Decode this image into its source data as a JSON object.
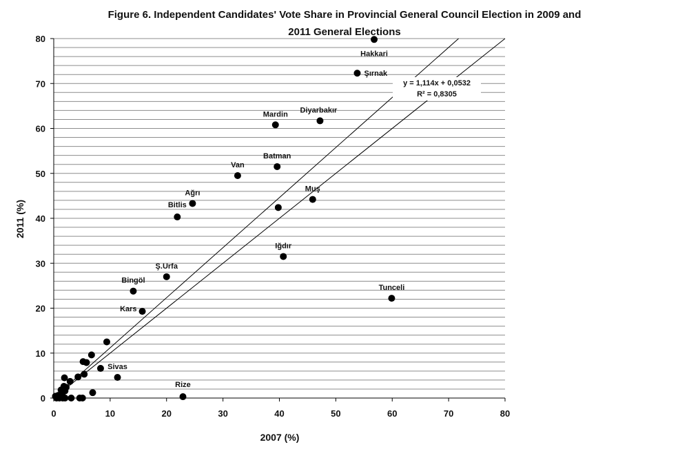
{
  "chart_data": {
    "type": "scatter",
    "title_line1": "Figure 6. Independent Candidates' Vote Share in Provincial General Council Election in 2009 and",
    "title_line2": "2011 General Elections",
    "xlabel": "2007 (%)",
    "ylabel": "2011 (%)",
    "xlim": [
      0,
      80
    ],
    "ylim": [
      0,
      80
    ],
    "x_ticks": [
      0,
      10,
      20,
      30,
      40,
      50,
      60,
      70,
      80
    ],
    "y_ticks": [
      0,
      10,
      20,
      30,
      40,
      50,
      60,
      70,
      80
    ],
    "x_tick_labels": [
      "0",
      "10",
      "20",
      "30",
      "40",
      "50",
      "60",
      "70",
      "80"
    ],
    "y_tick_labels": [
      "0",
      "10",
      "20",
      "30",
      "40",
      "50",
      "60",
      "70",
      "80"
    ],
    "grid": "horizontal gridlines every 2 units",
    "trendline": {
      "slope": 1.114,
      "intercept": 0.0532
    },
    "trendline_equation": "y = 1,114x + 0,0532",
    "trendline_r2": "R² = 0,8305",
    "reference_line": {
      "slope": 1,
      "intercept": 0
    },
    "points": [
      {
        "x": 56.8,
        "y": 79.8,
        "label": "Hakkari"
      },
      {
        "x": 53.8,
        "y": 72.3,
        "label": "Şırnak"
      },
      {
        "x": 47.2,
        "y": 61.7,
        "label": "Diyarbakır"
      },
      {
        "x": 39.3,
        "y": 60.8,
        "label": "Mardin"
      },
      {
        "x": 39.6,
        "y": 51.5,
        "label": "Batman"
      },
      {
        "x": 32.6,
        "y": 49.5,
        "label": "Van"
      },
      {
        "x": 24.6,
        "y": 43.3,
        "label": "Ağrı"
      },
      {
        "x": 21.9,
        "y": 40.3,
        "label": "Bitlis"
      },
      {
        "x": 45.9,
        "y": 44.2,
        "label": "Muş"
      },
      {
        "x": 39.8,
        "y": 42.4,
        "label": ""
      },
      {
        "x": 40.7,
        "y": 31.5,
        "label": "Iğdır"
      },
      {
        "x": 20.0,
        "y": 27.0,
        "label": "Ş.Urfa"
      },
      {
        "x": 14.1,
        "y": 23.8,
        "label": "Bingöl"
      },
      {
        "x": 15.7,
        "y": 19.3,
        "label": "Kars"
      },
      {
        "x": 59.9,
        "y": 22.2,
        "label": "Tunceli"
      },
      {
        "x": 9.4,
        "y": 12.5,
        "label": ""
      },
      {
        "x": 6.7,
        "y": 9.6,
        "label": ""
      },
      {
        "x": 5.2,
        "y": 8.1,
        "label": ""
      },
      {
        "x": 5.8,
        "y": 7.9,
        "label": ""
      },
      {
        "x": 8.3,
        "y": 6.6,
        "label": ""
      },
      {
        "x": 5.4,
        "y": 5.3,
        "label": ""
      },
      {
        "x": 4.3,
        "y": 4.7,
        "label": ""
      },
      {
        "x": 11.3,
        "y": 4.6,
        "label": "Sivas"
      },
      {
        "x": 1.9,
        "y": 4.5,
        "label": ""
      },
      {
        "x": 2.9,
        "y": 3.7,
        "label": ""
      },
      {
        "x": 1.8,
        "y": 2.6,
        "label": ""
      },
      {
        "x": 2.2,
        "y": 2.4,
        "label": ""
      },
      {
        "x": 1.3,
        "y": 1.8,
        "label": ""
      },
      {
        "x": 2.0,
        "y": 1.6,
        "label": ""
      },
      {
        "x": 6.9,
        "y": 1.2,
        "label": ""
      },
      {
        "x": 1.5,
        "y": 0.9,
        "label": ""
      },
      {
        "x": 0.8,
        "y": 0.6,
        "label": ""
      },
      {
        "x": 22.9,
        "y": 0.3,
        "label": "Rize"
      },
      {
        "x": 0.3,
        "y": 0.4,
        "label": ""
      },
      {
        "x": 0.5,
        "y": 0.0,
        "label": ""
      },
      {
        "x": 1.0,
        "y": 0.0,
        "label": ""
      },
      {
        "x": 1.6,
        "y": 0.0,
        "label": ""
      },
      {
        "x": 2.0,
        "y": 0.0,
        "label": ""
      },
      {
        "x": 3.1,
        "y": 0.0,
        "label": ""
      },
      {
        "x": 4.6,
        "y": 0.0,
        "label": ""
      },
      {
        "x": 5.1,
        "y": 0.0,
        "label": ""
      }
    ]
  }
}
